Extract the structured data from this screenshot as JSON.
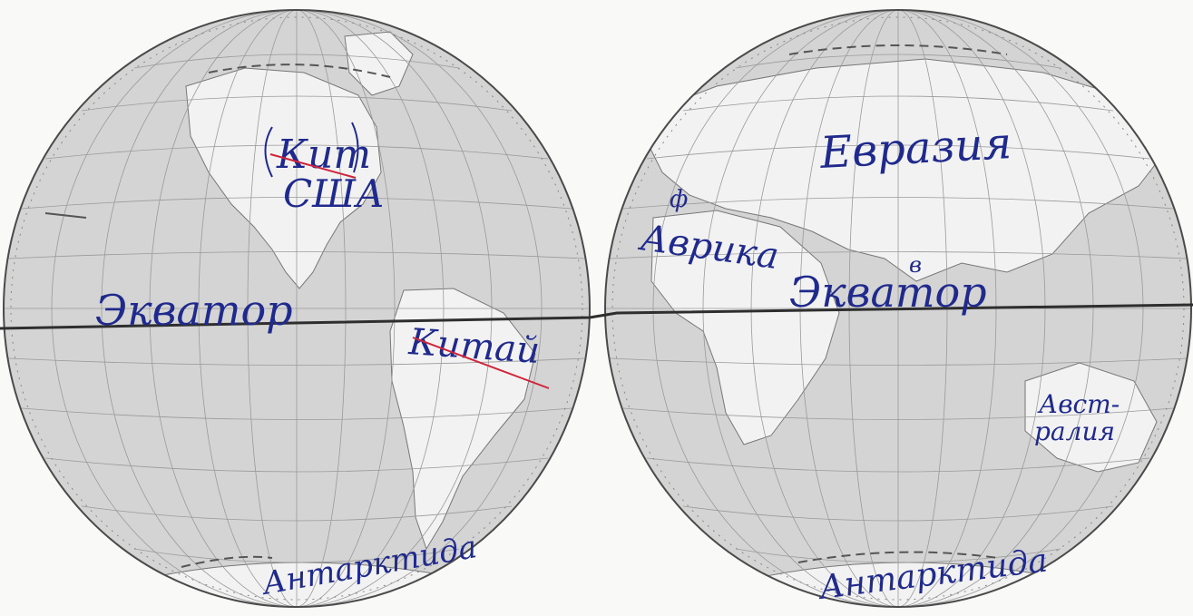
{
  "map": {
    "title": "",
    "hemispheres": [
      {
        "name": "western-hemisphere",
        "labels": {
          "crossed_word": "Кит",
          "country": "США",
          "equator": "Экватор",
          "crossed_country": "Китай",
          "continent_south": "Антарктида"
        }
      },
      {
        "name": "eastern-hemisphere",
        "labels": {
          "continent_north": "Евразия",
          "correction_letter": "ф",
          "continent_africa": "Аврика",
          "equator": "Экватор",
          "correction_vowel": "в",
          "continent_australia_line1": "Авст-",
          "continent_australia_line2": "ралия",
          "continent_south": "Антарктида"
        }
      }
    ],
    "colors": {
      "ink_blue": "#1f2a8c",
      "ink_red": "#d0243a",
      "equator_line": "#3a3a3a",
      "grid": "#9a9a9a",
      "land": "#f1f1f1",
      "ocean": "#d2d2d2"
    }
  }
}
